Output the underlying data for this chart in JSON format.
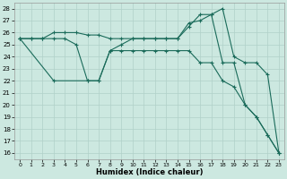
{
  "xlabel": "Humidex (Indice chaleur)",
  "xlim": [
    -0.5,
    23.5
  ],
  "ylim": [
    15.5,
    28.5
  ],
  "xticks": [
    0,
    1,
    2,
    3,
    4,
    5,
    6,
    7,
    8,
    9,
    10,
    11,
    12,
    13,
    14,
    15,
    16,
    17,
    18,
    19,
    20,
    21,
    22,
    23
  ],
  "yticks": [
    16,
    17,
    18,
    19,
    20,
    21,
    22,
    23,
    24,
    25,
    26,
    27,
    28
  ],
  "bg_color": "#cce8e0",
  "line_color": "#1a6b5a",
  "grid_color": "#b0d0c8",
  "line1_x": [
    0,
    1,
    2,
    3,
    4,
    5,
    6,
    7,
    8,
    9,
    10,
    11,
    12,
    13,
    14,
    15,
    16,
    17,
    18,
    19,
    20,
    21,
    22,
    23
  ],
  "line1_y": [
    25.5,
    25.5,
    25.5,
    26.0,
    26.0,
    26.0,
    25.8,
    25.8,
    25.5,
    25.5,
    25.5,
    25.5,
    25.5,
    25.5,
    25.5,
    26.8,
    27.0,
    27.5,
    28.0,
    24.0,
    23.5,
    23.5,
    22.5,
    16.0
  ],
  "line2_x": [
    0,
    1,
    2,
    3,
    4,
    5,
    6,
    7,
    8,
    9,
    10,
    11,
    12,
    13,
    14,
    15,
    16,
    17,
    18,
    19,
    20,
    21,
    22,
    23
  ],
  "line2_y": [
    25.5,
    25.5,
    25.5,
    25.5,
    25.5,
    25.0,
    22.0,
    22.0,
    24.5,
    25.0,
    25.5,
    25.5,
    25.5,
    25.5,
    25.5,
    26.5,
    27.5,
    27.5,
    23.5,
    23.5,
    20.0,
    19.0,
    17.5,
    16.0
  ],
  "line3_x": [
    0,
    3,
    6,
    7,
    8,
    9,
    10,
    11,
    12,
    13,
    14,
    15,
    16,
    17,
    18,
    19,
    20,
    21,
    22,
    23
  ],
  "line3_y": [
    25.5,
    22.0,
    22.0,
    22.0,
    24.5,
    24.5,
    24.5,
    24.5,
    24.5,
    24.5,
    24.5,
    24.5,
    23.5,
    23.5,
    22.0,
    21.5,
    20.0,
    19.0,
    17.5,
    16.0
  ]
}
